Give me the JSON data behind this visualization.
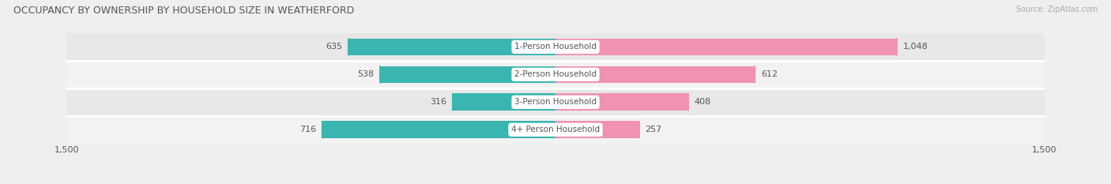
{
  "title": "OCCUPANCY BY OWNERSHIP BY HOUSEHOLD SIZE IN WEATHERFORD",
  "source": "Source: ZipAtlas.com",
  "categories": [
    "1-Person Household",
    "2-Person Household",
    "3-Person Household",
    "4+ Person Household"
  ],
  "owner_values": [
    635,
    538,
    316,
    716
  ],
  "renter_values": [
    1048,
    612,
    408,
    257
  ],
  "owner_color": "#3ab5b0",
  "renter_color": "#f093b0",
  "bar_height": 0.62,
  "xlim": 1500,
  "label_color": "#555555",
  "background_color": "#efefef",
  "row_colors": [
    "#e8e8e8",
    "#f2f2f2",
    "#e8e8e8",
    "#f2f2f2"
  ],
  "title_fontsize": 9,
  "source_fontsize": 7,
  "legend_fontsize": 8,
  "axis_fontsize": 8,
  "value_fontsize": 8
}
